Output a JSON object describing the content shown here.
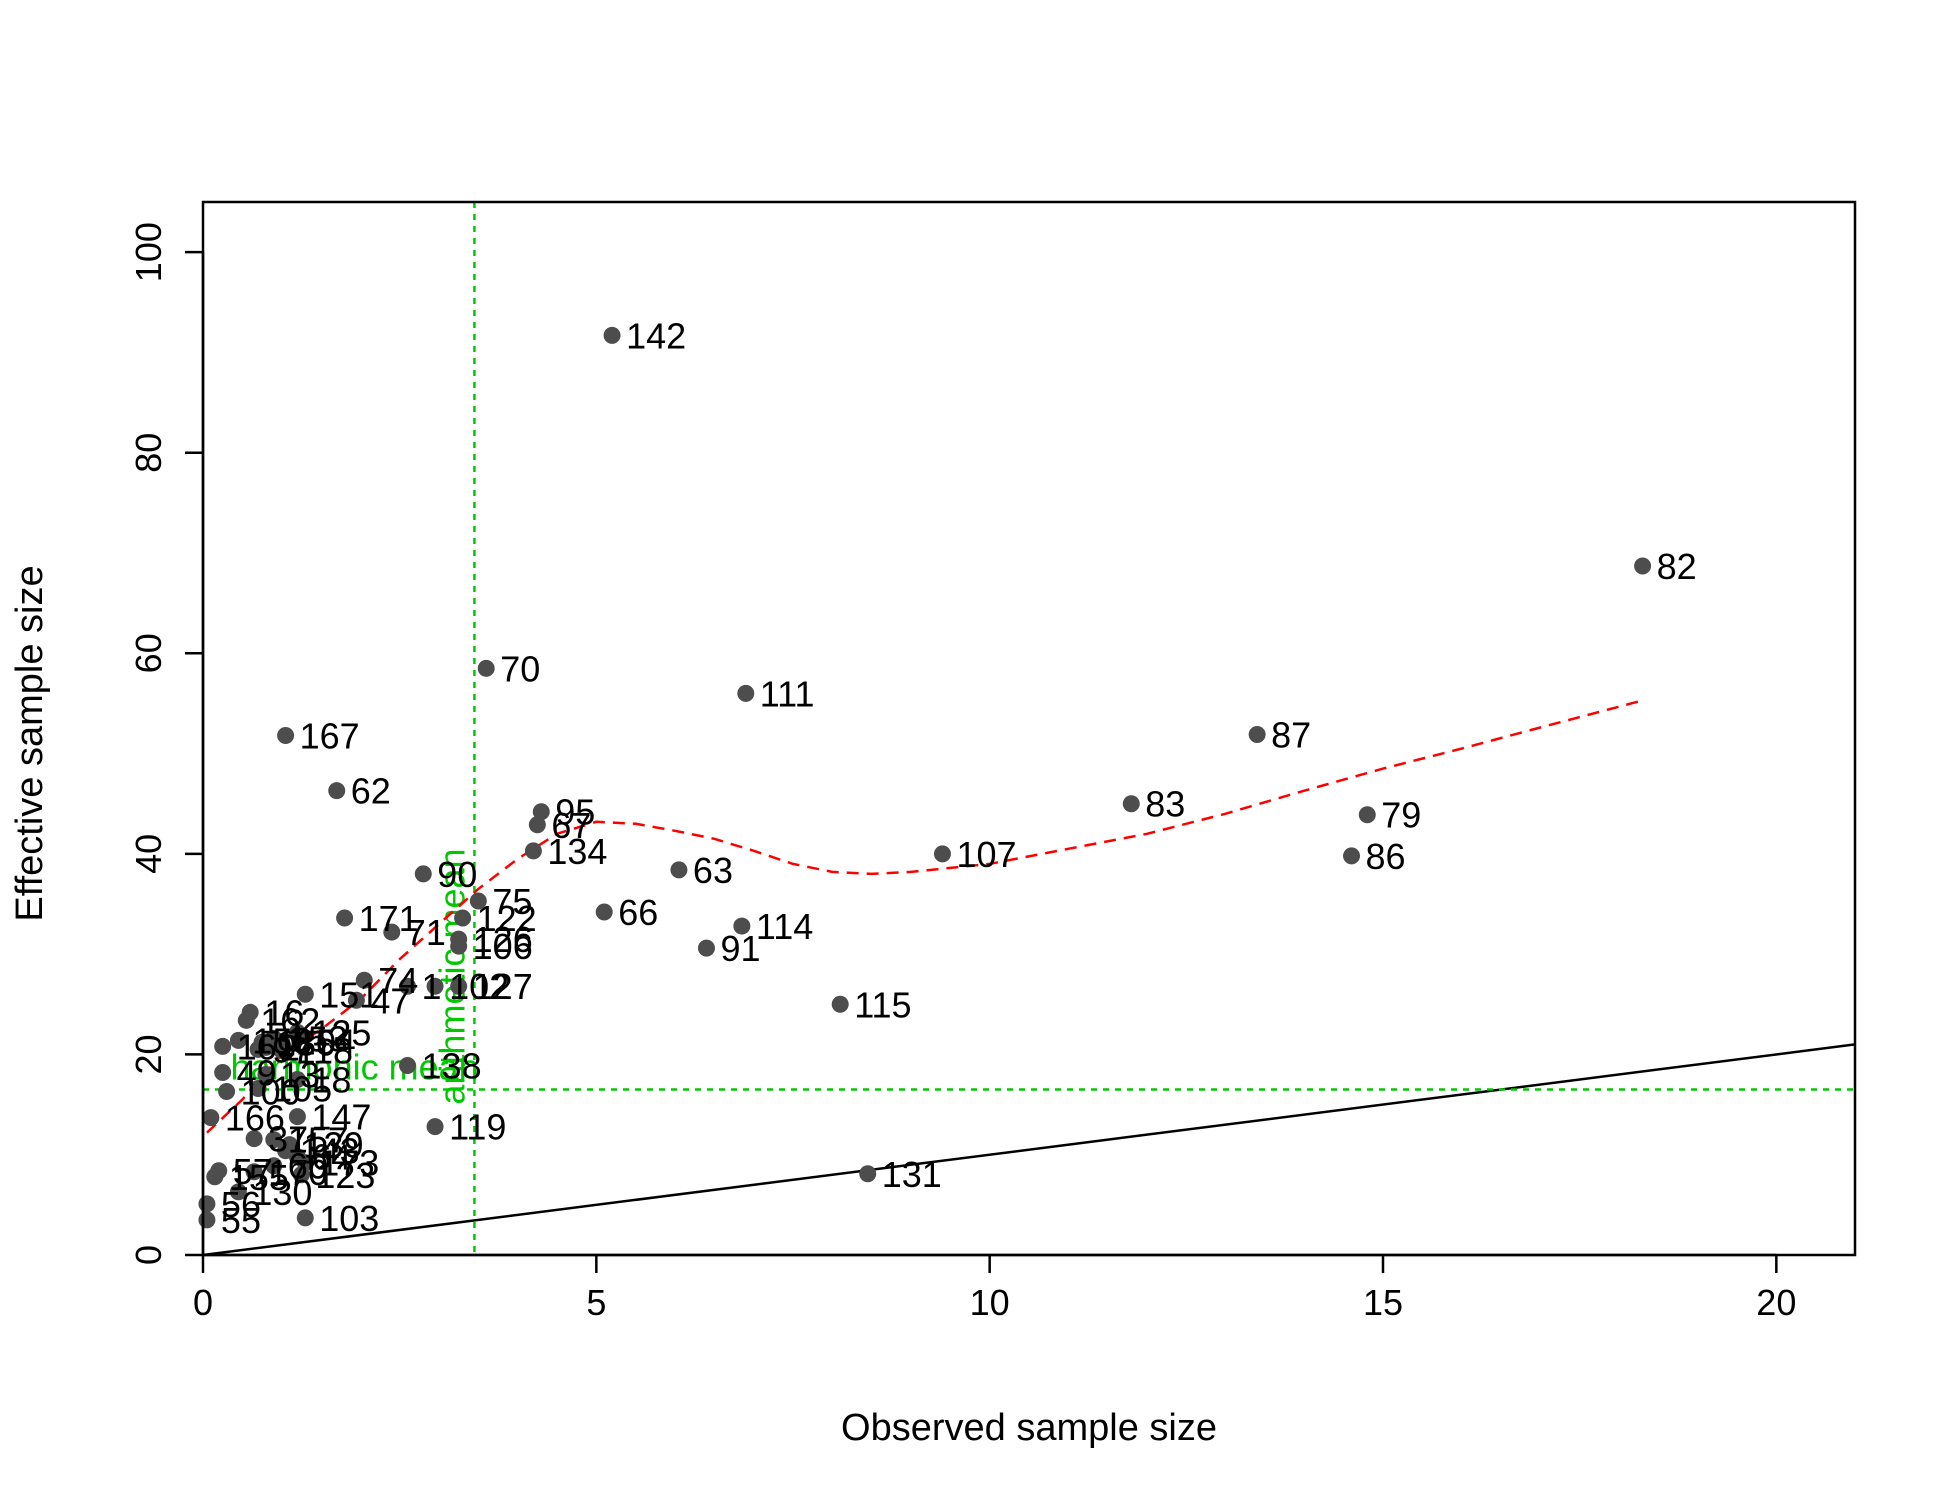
{
  "chart_data": {
    "type": "scatter",
    "title": "",
    "xlabel": "Observed sample size",
    "ylabel": "Effective sample size",
    "xlim": [
      0,
      21
    ],
    "ylim": [
      0,
      105
    ],
    "x_ticks": [
      "0",
      "5",
      "10",
      "15",
      "20"
    ],
    "y_ticks": [
      "0",
      "20",
      "40",
      "60",
      "80",
      "100"
    ],
    "grid": false,
    "points": [
      {
        "label": "142",
        "x": 5.2,
        "y": 91.7
      },
      {
        "label": "82",
        "x": 18.3,
        "y": 68.7
      },
      {
        "label": "70",
        "x": 3.6,
        "y": 58.5
      },
      {
        "label": "111",
        "x": 6.9,
        "y": 56.0
      },
      {
        "label": "167",
        "x": 1.05,
        "y": 51.8
      },
      {
        "label": "87",
        "x": 13.4,
        "y": 51.9
      },
      {
        "label": "62",
        "x": 1.7,
        "y": 46.3
      },
      {
        "label": "83",
        "x": 11.8,
        "y": 45.0
      },
      {
        "label": "95",
        "x": 4.3,
        "y": 44.2
      },
      {
        "label": "79",
        "x": 14.8,
        "y": 43.9
      },
      {
        "label": "67",
        "x": 4.25,
        "y": 42.9
      },
      {
        "label": "134",
        "x": 4.2,
        "y": 40.3
      },
      {
        "label": "107",
        "x": 9.4,
        "y": 40.0
      },
      {
        "label": "86",
        "x": 14.6,
        "y": 39.8
      },
      {
        "label": "63",
        "x": 6.05,
        "y": 38.4
      },
      {
        "label": "90",
        "x": 2.8,
        "y": 38.0
      },
      {
        "label": "75",
        "x": 3.5,
        "y": 35.3
      },
      {
        "label": "66",
        "x": 5.1,
        "y": 34.2
      },
      {
        "label": "171",
        "x": 1.8,
        "y": 33.6
      },
      {
        "label": "122",
        "x": 3.3,
        "y": 33.6
      },
      {
        "label": "114",
        "x": 6.85,
        "y": 32.8
      },
      {
        "label": "71",
        "x": 2.4,
        "y": 32.2
      },
      {
        "label": "126",
        "x": 3.25,
        "y": 31.5
      },
      {
        "label": "106",
        "x": 3.25,
        "y": 30.8
      },
      {
        "label": "91",
        "x": 6.4,
        "y": 30.6
      },
      {
        "label": "74",
        "x": 2.05,
        "y": 27.4
      },
      {
        "label": "1",
        "x": 2.6,
        "y": 26.8
      },
      {
        "label": "102",
        "x": 2.95,
        "y": 26.8
      },
      {
        "label": "127",
        "x": 3.25,
        "y": 26.8
      },
      {
        "label": "151",
        "x": 1.3,
        "y": 26.0
      },
      {
        "label": "47",
        "x": 1.95,
        "y": 25.4
      },
      {
        "label": "115",
        "x": 8.1,
        "y": 25.0
      },
      {
        "label": "16",
        "x": 0.6,
        "y": 24.2
      },
      {
        "label": "162",
        "x": 0.55,
        "y": 23.4
      },
      {
        "label": "125",
        "x": 1.2,
        "y": 22.2
      },
      {
        "label": "153",
        "x": 0.9,
        "y": 21.6
      },
      {
        "label": "154",
        "x": 1.0,
        "y": 21.3
      },
      {
        "label": "158",
        "x": 0.45,
        "y": 21.4
      },
      {
        "label": "180",
        "x": 0.75,
        "y": 21.2
      },
      {
        "label": "169",
        "x": 0.25,
        "y": 20.8
      },
      {
        "label": "2",
        "x": 0.8,
        "y": 20.7
      },
      {
        "label": "97",
        "x": 0.7,
        "y": 20.5
      },
      {
        "label": "118",
        "x": 1.0,
        "y": 20.4
      },
      {
        "label": "138",
        "x": 2.6,
        "y": 18.9
      },
      {
        "label": "49",
        "x": 0.25,
        "y": 18.2
      },
      {
        "label": "13",
        "x": 0.8,
        "y": 18.0
      },
      {
        "label": "18",
        "x": 1.2,
        "y": 17.5
      },
      {
        "label": "105",
        "x": 0.7,
        "y": 16.6
      },
      {
        "label": "100",
        "x": 0.3,
        "y": 16.3
      },
      {
        "label": "166",
        "x": 0.1,
        "y": 13.7
      },
      {
        "label": "147",
        "x": 1.2,
        "y": 13.8
      },
      {
        "label": "119",
        "x": 2.95,
        "y": 12.8
      },
      {
        "label": "37",
        "x": 0.65,
        "y": 11.6
      },
      {
        "label": "157",
        "x": 0.9,
        "y": 11.5
      },
      {
        "label": "139",
        "x": 1.1,
        "y": 11.0
      },
      {
        "label": "143",
        "x": 1.05,
        "y": 10.4
      },
      {
        "label": "64",
        "x": 1.2,
        "y": 9.8
      },
      {
        "label": "173",
        "x": 1.3,
        "y": 9.2
      },
      {
        "label": "60",
        "x": 0.9,
        "y": 8.9
      },
      {
        "label": "57",
        "x": 0.2,
        "y": 8.4
      },
      {
        "label": "170",
        "x": 0.65,
        "y": 8.3
      },
      {
        "label": "123",
        "x": 1.25,
        "y": 8.0
      },
      {
        "label": "131",
        "x": 8.45,
        "y": 8.1
      },
      {
        "label": "155",
        "x": 0.15,
        "y": 7.8
      },
      {
        "label": "130",
        "x": 0.45,
        "y": 6.3
      },
      {
        "label": "56",
        "x": 0.05,
        "y": 5.1
      },
      {
        "label": "103",
        "x": 1.3,
        "y": 3.7
      },
      {
        "label": "55",
        "x": 0.05,
        "y": 3.5
      }
    ],
    "loess_curve": [
      {
        "x": 0.05,
        "y": 12.2
      },
      {
        "x": 0.5,
        "y": 15.5
      },
      {
        "x": 1.0,
        "y": 20.0
      },
      {
        "x": 1.5,
        "y": 22.5
      },
      {
        "x": 2.0,
        "y": 25.5
      },
      {
        "x": 2.5,
        "y": 29.5
      },
      {
        "x": 3.0,
        "y": 33.0
      },
      {
        "x": 3.5,
        "y": 36.5
      },
      {
        "x": 4.0,
        "y": 39.5
      },
      {
        "x": 4.5,
        "y": 42.0
      },
      {
        "x": 5.0,
        "y": 43.2
      },
      {
        "x": 5.5,
        "y": 43.0
      },
      {
        "x": 6.0,
        "y": 42.3
      },
      {
        "x": 6.5,
        "y": 41.5
      },
      {
        "x": 7.0,
        "y": 40.3
      },
      {
        "x": 7.5,
        "y": 39.0
      },
      {
        "x": 8.0,
        "y": 38.2
      },
      {
        "x": 8.5,
        "y": 38.0
      },
      {
        "x": 9.0,
        "y": 38.2
      },
      {
        "x": 10.0,
        "y": 39.0
      },
      {
        "x": 11.0,
        "y": 40.5
      },
      {
        "x": 12.0,
        "y": 42.0
      },
      {
        "x": 13.0,
        "y": 44.0
      },
      {
        "x": 14.0,
        "y": 46.3
      },
      {
        "x": 15.0,
        "y": 48.5
      },
      {
        "x": 16.0,
        "y": 50.5
      },
      {
        "x": 17.0,
        "y": 52.6
      },
      {
        "x": 18.3,
        "y": 55.3
      }
    ],
    "identity_line": [
      {
        "x": 0,
        "y": 0
      },
      {
        "x": 21,
        "y": 21
      }
    ],
    "reference_lines": [
      {
        "label": "arithmetic mean",
        "orientation": "vertical",
        "x": 3.45
      },
      {
        "label": "harmonic mean",
        "orientation": "horizontal",
        "y": 16.5
      }
    ],
    "colors": {
      "points": "#4d4d4d",
      "loess": "#ff0000",
      "reference": "#00c800",
      "identity": "#000000"
    }
  }
}
